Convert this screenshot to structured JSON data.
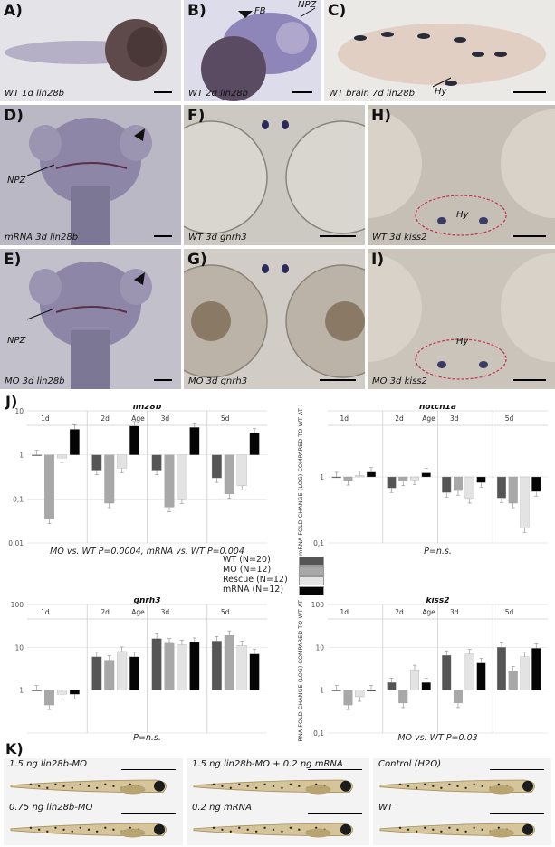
{
  "panels": {
    "A": {
      "label": "A)",
      "caption": "WT 1d lin28b"
    },
    "B": {
      "label": "B)",
      "caption": "WT 2d lin28b",
      "fb": "FB",
      "npz": "NPZ"
    },
    "C": {
      "label": "C)",
      "caption": "WT brain 7d lin28b",
      "hy": "Hy"
    },
    "D": {
      "label": "D)",
      "caption": "mRNA 3d lin28b",
      "npz": "NPZ"
    },
    "F": {
      "label": "F)",
      "caption": "WT 3d gnrh3"
    },
    "H": {
      "label": "H)",
      "caption": "WT 3d kiss2",
      "hy": "Hy"
    },
    "E": {
      "label": "E)",
      "caption": "MO 3d lin28b",
      "npz": "NPZ"
    },
    "G": {
      "label": "G)",
      "caption": "MO 3d gnrh3"
    },
    "I": {
      "label": "I)",
      "caption": "MO 3d kiss2",
      "hy": "Hy"
    }
  },
  "section_j": "J)",
  "section_k": "K)",
  "legend": {
    "items": [
      {
        "name": "WT (N=20)",
        "color": "#555555"
      },
      {
        "name": "MO (N=12)",
        "color": "#a8a8a8"
      },
      {
        "name": "Rescue (N=12)",
        "color": "#e3e3e3"
      },
      {
        "name": "mRNA (N=12)",
        "color": "#050505"
      }
    ]
  },
  "chart_data": [
    {
      "type": "bar",
      "title": "lin28b",
      "categories": [
        "1d",
        "2d",
        "3d",
        "5d"
      ],
      "axis_header": "Age",
      "yscale": "log",
      "ylim": [
        0.01,
        10
      ],
      "yticks": [
        "10",
        "1",
        "0,1",
        "0,01"
      ],
      "ylabel": "",
      "series": [
        {
          "name": "WT (N=20)",
          "values": [
            1.0,
            0.45,
            0.45,
            0.3
          ]
        },
        {
          "name": "MO (N=12)",
          "values": [
            0.035,
            0.08,
            0.065,
            0.13
          ]
        },
        {
          "name": "Rescue (N=12)",
          "values": [
            0.85,
            0.5,
            0.1,
            0.2
          ]
        },
        {
          "name": "mRNA (N=12)",
          "values": [
            3.8,
            4.5,
            4.2,
            3.1
          ]
        }
      ],
      "annotation": "MO vs. WT P=0.0004, mRNA vs. WT P=0.004"
    },
    {
      "type": "bar",
      "title": "notch1a",
      "categories": [
        "1d",
        "2d",
        "3d",
        "5d"
      ],
      "axis_header": "Age",
      "yscale": "log",
      "ylim": [
        0.1,
        10
      ],
      "yticks": [
        "1",
        "0,1"
      ],
      "ylabel": "mRNA FOLD CHANGE (LOG) COMPARED TO WT AT 1D",
      "series": [
        {
          "name": "WT (N=20)",
          "values": [
            1.0,
            0.68,
            0.58,
            0.48
          ]
        },
        {
          "name": "MO (N=12)",
          "values": [
            0.88,
            0.86,
            0.62,
            0.4
          ]
        },
        {
          "name": "Rescue (N=12)",
          "values": [
            1.05,
            0.9,
            0.47,
            0.17
          ]
        },
        {
          "name": "mRNA (N=12)",
          "values": [
            1.18,
            1.15,
            0.82,
            0.6
          ]
        }
      ],
      "annotation": "P=n.s."
    },
    {
      "type": "bar",
      "title": "gnrh3",
      "categories": [
        "1d",
        "2d",
        "3d",
        "5d"
      ],
      "axis_header": "Age",
      "yscale": "log",
      "ylim": [
        0.1,
        100
      ],
      "yticks": [
        "100",
        "10",
        "1"
      ],
      "ylabel": "",
      "series": [
        {
          "name": "WT (N=20)",
          "values": [
            1.0,
            6.0,
            16.0,
            14.0
          ]
        },
        {
          "name": "MO (N=12)",
          "values": [
            0.45,
            5.0,
            12.5,
            19.0
          ]
        },
        {
          "name": "Rescue (N=12)",
          "values": [
            0.8,
            8.0,
            11.5,
            11.0
          ]
        },
        {
          "name": "mRNA (N=12)",
          "values": [
            0.8,
            6.0,
            13.0,
            7.0
          ]
        }
      ],
      "annotation": "P=n.s."
    },
    {
      "type": "bar",
      "title": "kiss2",
      "categories": [
        "1d",
        "2d",
        "3d",
        "5d"
      ],
      "axis_header": "Age",
      "yscale": "log",
      "ylim": [
        0.1,
        100
      ],
      "yticks": [
        "100",
        "10",
        "1",
        "0,1"
      ],
      "ylabel": "mRNA FOLD CHANGE (LOG) COMPARED TO WT AT 1D",
      "series": [
        {
          "name": "WT (N=20)",
          "values": [
            1.0,
            1.5,
            6.5,
            10.0
          ]
        },
        {
          "name": "MO (N=12)",
          "values": [
            0.45,
            0.5,
            0.5,
            2.8
          ]
        },
        {
          "name": "Rescue (N=12)",
          "values": [
            0.7,
            3.0,
            7.0,
            6.0
          ]
        },
        {
          "name": "mRNA (N=12)",
          "values": [
            1.0,
            1.5,
            4.3,
            9.5
          ]
        }
      ],
      "annotation": "MO vs. WT P=0.03"
    }
  ],
  "fish": [
    {
      "caption": "1.5 ng lin28b-MO"
    },
    {
      "caption": "1.5 ng lin28b-MO + 0.2 ng mRNA"
    },
    {
      "caption": "Control (H2O)"
    },
    {
      "caption": "0.75 ng lin28b-MO"
    },
    {
      "caption": "0.2 ng mRNA"
    },
    {
      "caption": "WT"
    }
  ]
}
